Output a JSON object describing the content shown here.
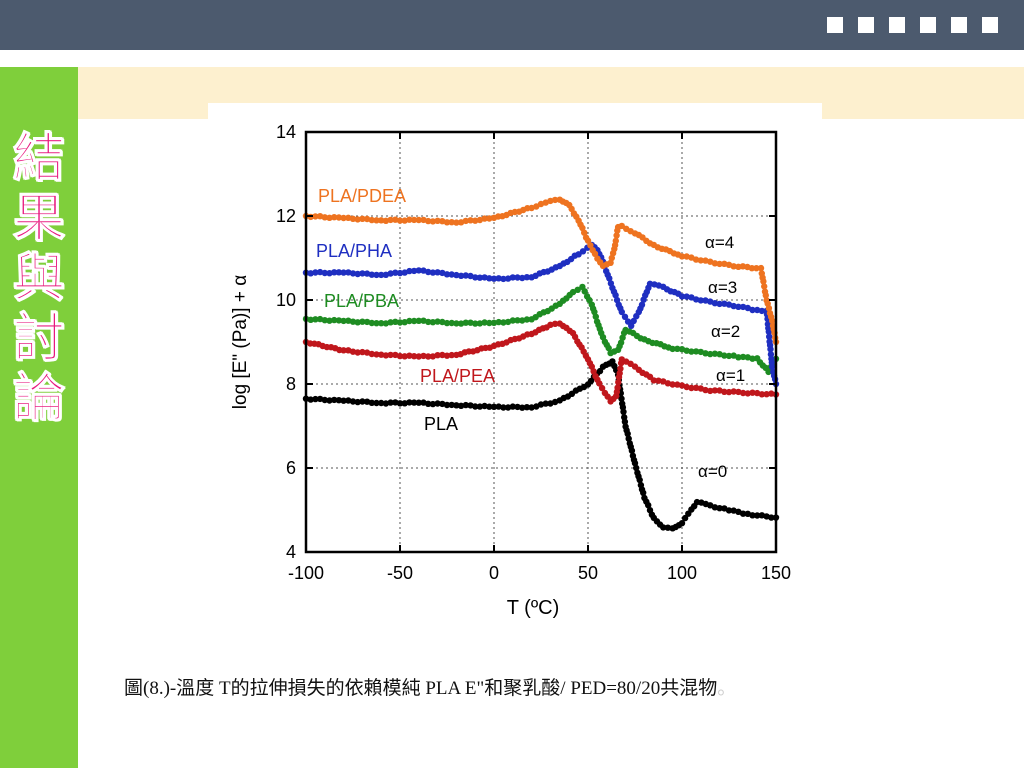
{
  "sidebar": {
    "title_chars": [
      "結",
      "果",
      "與",
      "討",
      "論"
    ]
  },
  "caption": {
    "text": "圖(8.)-溫度 T的拉伸損失的依賴模純 PLA E\"和聚乳酸/ PED=80/20共混物",
    "trailing_mark": "。"
  },
  "colors": {
    "topbar": "#4c5a6e",
    "sidebar": "#7fcf3b",
    "sidebar_text": "#e8197e",
    "beige_band": "#fdf0cf"
  },
  "chart_data": {
    "type": "scatter",
    "xlabel": "T (ºC)",
    "ylabel": "log [E\" (Pa)] + α",
    "xlim": [
      -100,
      150
    ],
    "ylim": [
      4,
      14
    ],
    "xticks": [
      -100,
      -50,
      0,
      50,
      100,
      150
    ],
    "yticks": [
      4,
      6,
      8,
      10,
      12,
      14
    ],
    "grid": true,
    "series": [
      {
        "name": "PLA",
        "alpha_label": "α=0",
        "color": "#000000",
        "x": [
          -100,
          -80,
          -60,
          -40,
          -20,
          0,
          20,
          35,
          50,
          58,
          63,
          66,
          70,
          75,
          80,
          85,
          90,
          95,
          100,
          105,
          108,
          115,
          125,
          135,
          150
        ],
        "y": [
          7.65,
          7.6,
          7.55,
          7.55,
          7.5,
          7.45,
          7.45,
          7.6,
          8.0,
          8.4,
          8.55,
          8.2,
          7.0,
          6.1,
          5.3,
          4.8,
          4.6,
          4.55,
          4.7,
          5.0,
          5.2,
          5.1,
          5.0,
          4.9,
          4.82
        ]
      },
      {
        "name": "PLA/PEA",
        "alpha_label": "α=1",
        "color": "#c0171c",
        "x": [
          -100,
          -80,
          -60,
          -40,
          -20,
          0,
          20,
          30,
          35,
          42,
          50,
          56,
          62,
          65,
          68,
          75,
          85,
          100,
          115,
          130,
          150
        ],
        "y": [
          9.0,
          8.8,
          8.7,
          8.65,
          8.7,
          8.9,
          9.2,
          9.4,
          9.45,
          9.2,
          8.6,
          8.0,
          7.6,
          7.7,
          8.6,
          8.4,
          8.1,
          7.95,
          7.85,
          7.8,
          7.75
        ]
      },
      {
        "name": "PLA/PBA",
        "alpha_label": "α=2",
        "color": "#1e8c22",
        "x": [
          -100,
          -80,
          -60,
          -40,
          -20,
          0,
          20,
          35,
          42,
          47,
          52,
          57,
          62,
          66,
          70,
          80,
          95,
          110,
          130,
          140,
          146,
          150
        ],
        "y": [
          9.55,
          9.5,
          9.45,
          9.5,
          9.45,
          9.45,
          9.55,
          9.9,
          10.2,
          10.3,
          9.9,
          9.2,
          8.75,
          8.8,
          9.3,
          9.05,
          8.85,
          8.75,
          8.65,
          8.6,
          8.3,
          8.6
        ]
      },
      {
        "name": "PLA/PHA",
        "alpha_label": "α=3",
        "color": "#1f2fc1",
        "x": [
          -100,
          -80,
          -60,
          -40,
          -20,
          0,
          20,
          35,
          45,
          52,
          55,
          58,
          63,
          68,
          73,
          77,
          83,
          90,
          100,
          115,
          130,
          140,
          145,
          148,
          150
        ],
        "y": [
          10.65,
          10.65,
          10.6,
          10.7,
          10.6,
          10.5,
          10.55,
          10.8,
          11.1,
          11.3,
          11.2,
          10.9,
          10.3,
          9.7,
          9.4,
          9.7,
          10.4,
          10.3,
          10.1,
          9.95,
          9.85,
          9.75,
          9.75,
          8.4,
          8.0
        ]
      },
      {
        "name": "PLA/PDEA",
        "alpha_label": "α=4",
        "color": "#ee7320",
        "x": [
          -100,
          -80,
          -60,
          -40,
          -20,
          0,
          20,
          30,
          35,
          40,
          45,
          50,
          55,
          58,
          62,
          64,
          66,
          68,
          75,
          85,
          100,
          115,
          130,
          142,
          145,
          148,
          150
        ],
        "y": [
          12.0,
          11.95,
          11.9,
          11.9,
          11.85,
          11.95,
          12.2,
          12.35,
          12.4,
          12.25,
          11.9,
          11.4,
          11.0,
          10.8,
          10.9,
          11.2,
          11.75,
          11.75,
          11.6,
          11.3,
          11.05,
          10.9,
          10.8,
          10.75,
          10.0,
          9.5,
          9.0
        ]
      }
    ]
  }
}
